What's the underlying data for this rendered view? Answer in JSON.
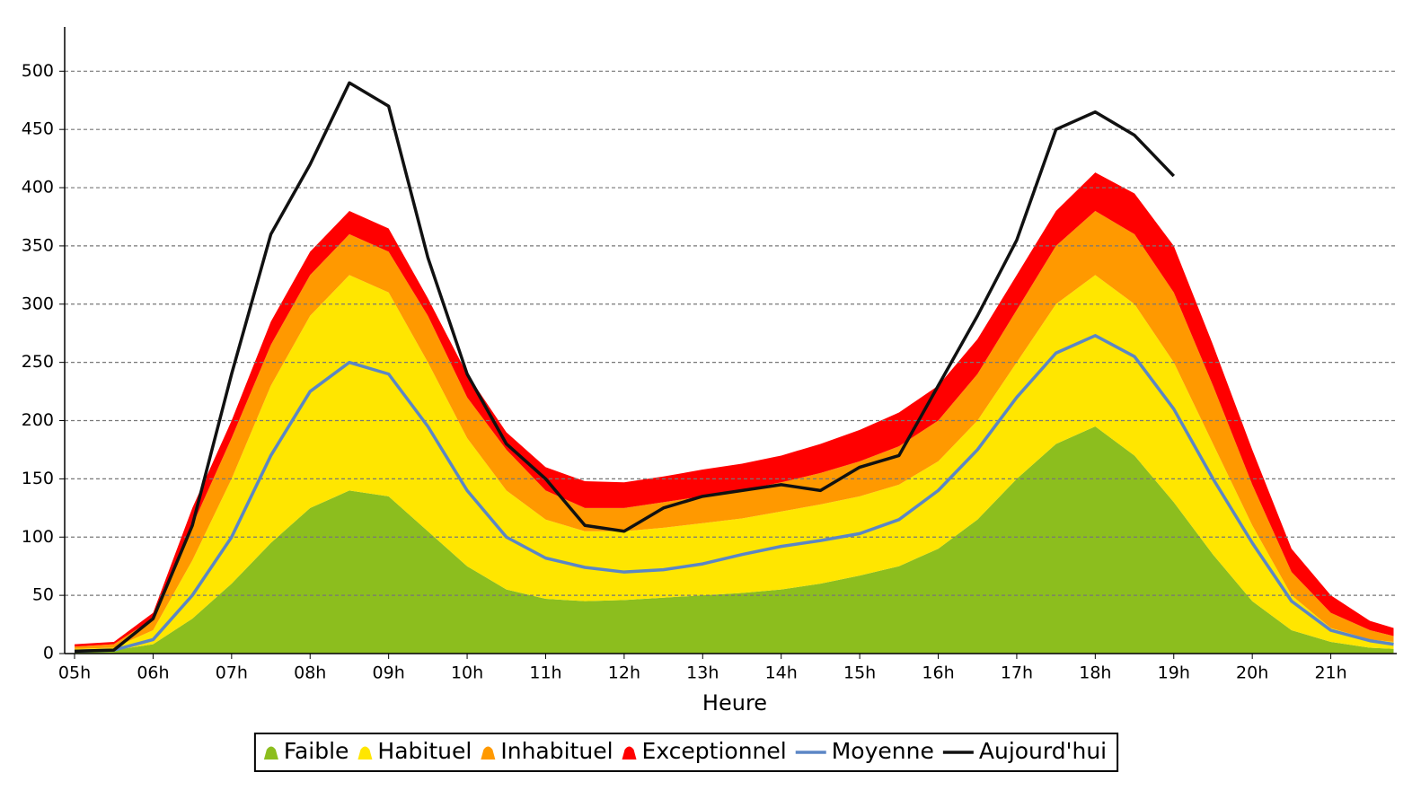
{
  "chart_data": {
    "type": "stacked-area-line",
    "x_label": "Heure",
    "x": [
      5.0,
      5.5,
      6.0,
      6.5,
      7.0,
      7.5,
      8.0,
      8.5,
      9.0,
      9.5,
      10.0,
      10.5,
      11.0,
      11.5,
      12.0,
      12.5,
      13.0,
      13.5,
      14.0,
      14.5,
      15.0,
      15.5,
      16.0,
      16.5,
      17.0,
      17.5,
      18.0,
      18.5,
      19.0,
      19.5,
      20.0,
      20.5,
      21.0,
      21.5,
      21.8
    ],
    "series": [
      {
        "name": "Faible",
        "kind": "area",
        "color": "#8cbe1e",
        "values": [
          2,
          3,
          8,
          30,
          60,
          95,
          125,
          140,
          135,
          105,
          75,
          55,
          47,
          45,
          46,
          48,
          50,
          52,
          55,
          60,
          67,
          75,
          90,
          115,
          150,
          180,
          195,
          170,
          130,
          85,
          45,
          20,
          10,
          5,
          4
        ]
      },
      {
        "name": "Habituel",
        "kind": "area",
        "color": "#ffe600",
        "values": [
          2,
          2,
          12,
          50,
          90,
          135,
          165,
          185,
          175,
          145,
          110,
          85,
          68,
          60,
          59,
          60,
          62,
          64,
          67,
          68,
          68,
          70,
          75,
          85,
          100,
          120,
          130,
          130,
          120,
          95,
          65,
          30,
          12,
          7,
          6
        ]
      },
      {
        "name": "Inhabituel",
        "kind": "area",
        "color": "#ff9900",
        "values": [
          2,
          3,
          10,
          30,
          35,
          35,
          35,
          35,
          35,
          40,
          35,
          35,
          25,
          20,
          20,
          22,
          23,
          24,
          25,
          27,
          30,
          33,
          35,
          40,
          45,
          50,
          55,
          60,
          60,
          50,
          35,
          20,
          13,
          8,
          5
        ]
      },
      {
        "name": "Exceptionnel",
        "kind": "area",
        "color": "#ff0000",
        "values": [
          2,
          2,
          5,
          15,
          15,
          20,
          20,
          20,
          20,
          15,
          20,
          15,
          20,
          23,
          22,
          22,
          23,
          23,
          23,
          25,
          27,
          29,
          30,
          30,
          30,
          30,
          33,
          35,
          40,
          35,
          30,
          20,
          15,
          8,
          7
        ]
      },
      {
        "name": "Moyenne",
        "kind": "line",
        "color": "#5b86c5",
        "values": [
          2,
          3,
          12,
          50,
          100,
          170,
          225,
          250,
          240,
          195,
          140,
          100,
          82,
          74,
          70,
          72,
          77,
          85,
          92,
          97,
          103,
          115,
          140,
          175,
          220,
          258,
          273,
          255,
          210,
          150,
          95,
          45,
          20,
          11,
          8
        ]
      },
      {
        "name": "Aujourd'hui",
        "kind": "line",
        "color": "#111111",
        "values": [
          2,
          3,
          30,
          110,
          240,
          360,
          420,
          490,
          470,
          340,
          240,
          180,
          150,
          110,
          105,
          125,
          135,
          140,
          145,
          140,
          160,
          170,
          230,
          290,
          355,
          450,
          465,
          445,
          410,
          null,
          null,
          null,
          null,
          null,
          null
        ]
      }
    ],
    "xlim": [
      4.874,
      21.84
    ],
    "xticks": [
      {
        "value": 5,
        "label": "05h"
      },
      {
        "value": 6,
        "label": "06h"
      },
      {
        "value": 7,
        "label": "07h"
      },
      {
        "value": 8,
        "label": "08h"
      },
      {
        "value": 9,
        "label": "09h"
      },
      {
        "value": 10,
        "label": "10h"
      },
      {
        "value": 11,
        "label": "11h"
      },
      {
        "value": 12,
        "label": "12h"
      },
      {
        "value": 13,
        "label": "13h"
      },
      {
        "value": 14,
        "label": "14h"
      },
      {
        "value": 15,
        "label": "15h"
      },
      {
        "value": 16,
        "label": "16h"
      },
      {
        "value": 17,
        "label": "17h"
      },
      {
        "value": 18,
        "label": "18h"
      },
      {
        "value": 19,
        "label": "19h"
      },
      {
        "value": 20,
        "label": "20h"
      },
      {
        "value": 21,
        "label": "21h"
      }
    ],
    "ylim": [
      0,
      538
    ],
    "yticks": [
      0,
      50,
      100,
      150,
      200,
      250,
      300,
      350,
      400,
      450,
      500
    ],
    "grid": true
  }
}
